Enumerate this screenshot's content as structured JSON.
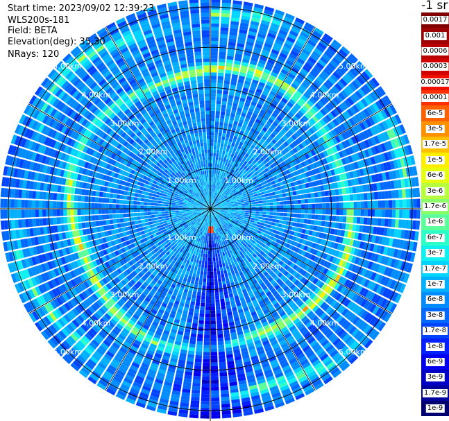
{
  "info": {
    "start_time": "Start time: 2023/09/02 12:39:23",
    "site": "WLS200s-181",
    "field": "Field: BETA",
    "elevation": "Elevation(deg): 35.30",
    "nrays": "NRays: 120"
  },
  "colorbar_title": "-1 sr",
  "chart_data": {
    "type": "heatmap",
    "projection": "polar (PPI scan)",
    "n_rays": 120,
    "elevation_deg": 35.3,
    "range_rings_km": [
      1.0,
      2.0,
      3.0,
      4.0,
      5.0
    ],
    "max_range_km": 5.2,
    "ring_labels": [
      "1.00km",
      "2.00km",
      "3.00km",
      "4.00km",
      "5.00km"
    ],
    "spoke_angles_deg": [
      0,
      30,
      60,
      90,
      120,
      150,
      180,
      210,
      240,
      270,
      300,
      330
    ],
    "color_scale": "log",
    "colorbar": [
      {
        "label": "0.0017",
        "color": "#800000"
      },
      {
        "label": "0.001",
        "color": "#9c0000"
      },
      {
        "label": "0.0006",
        "color": "#b80000"
      },
      {
        "label": "0.0003",
        "color": "#d40000"
      },
      {
        "label": "0.00017",
        "color": "#f01000"
      },
      {
        "label": "0.0001",
        "color": "#ff3000"
      },
      {
        "label": "6e-5",
        "color": "#ff6000"
      },
      {
        "label": "3e-5",
        "color": "#ff9000"
      },
      {
        "label": "1.7e-5",
        "color": "#ffc000"
      },
      {
        "label": "1e-5",
        "color": "#ffee00"
      },
      {
        "label": "6e-6",
        "color": "#e6ff10"
      },
      {
        "label": "3e-6",
        "color": "#b8ff3e"
      },
      {
        "label": "1.7e-6",
        "color": "#8aff6c"
      },
      {
        "label": "1e-6",
        "color": "#5cff9a"
      },
      {
        "label": "6e-7",
        "color": "#2effc8"
      },
      {
        "label": "3e-7",
        "color": "#10f0f0"
      },
      {
        "label": "1.7e-7",
        "color": "#00d4ff"
      },
      {
        "label": "1e-7",
        "color": "#00b0ff"
      },
      {
        "label": "6e-8",
        "color": "#008cff"
      },
      {
        "label": "3e-8",
        "color": "#0068ff"
      },
      {
        "label": "1.7e-8",
        "color": "#0044ff"
      },
      {
        "label": "1e-8",
        "color": "#0020ff"
      },
      {
        "label": "6e-9",
        "color": "#0000ee"
      },
      {
        "label": "3e-9",
        "color": "#0000c4"
      },
      {
        "label": "1.7e-9",
        "color": "#00009a"
      },
      {
        "label": "1e-9",
        "color": "#000070"
      }
    ],
    "features": [
      {
        "type": "aerosol ring",
        "range_km": [
          3.3,
          3.6
        ],
        "level": "1e-5 to 1e-4"
      },
      {
        "type": "aerosol ring",
        "range_km": [
          4.5,
          5.0
        ],
        "level": "6e-6 to 6e-5"
      },
      {
        "type": "hotspot",
        "azimuth_deg": 178,
        "range_km": 0.5,
        "level": "1e-4"
      },
      {
        "type": "weak sector",
        "azimuth_deg": [
          165,
          195
        ],
        "level": "1e-8"
      }
    ]
  }
}
